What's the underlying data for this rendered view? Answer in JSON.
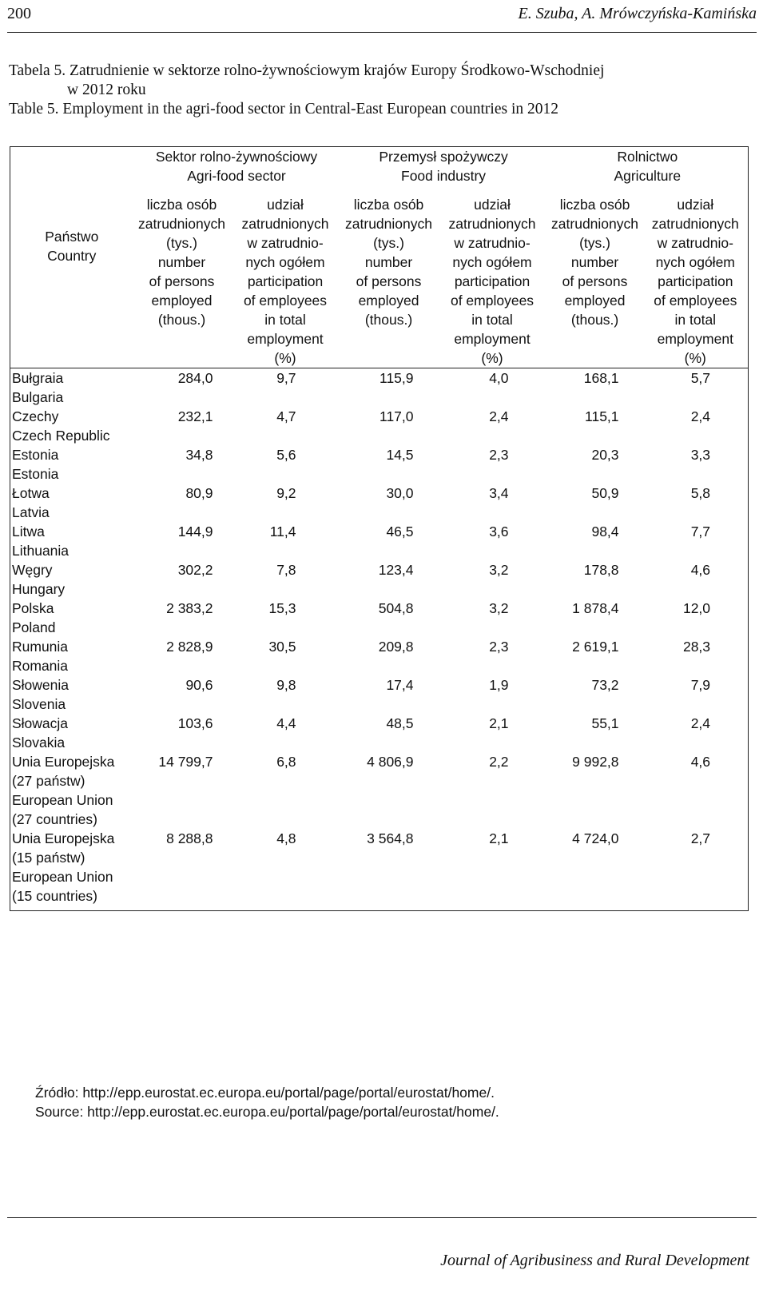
{
  "header": {
    "page_number": "200",
    "authors": "E. Szuba, A. Mrówczyńska-Kamińska"
  },
  "caption": {
    "pl_line1": "Tabela 5. Zatrudnienie w sektorze rolno-żywnościowym krajów Europy Środkowo-Wschodniej",
    "pl_line2": "w 2012 roku",
    "en_line": "Table 5.  Employment in the agri-food sector in Central-East European countries in 2012"
  },
  "table": {
    "country_header": [
      "Państwo",
      "Country"
    ],
    "groups": [
      {
        "pl": "Sektor rolno-żywnościowy",
        "en": "Agri-food sector"
      },
      {
        "pl": "Przemysł spożywczy",
        "en": "Food industry"
      },
      {
        "pl": "Rolnictwo",
        "en": "Agriculture"
      }
    ],
    "subheaders": {
      "count": [
        "liczba osób",
        "zatrudnionych",
        "(tys.)",
        "number",
        "of persons",
        "employed",
        "(thous.)"
      ],
      "share": [
        "udział",
        "zatrudnionych",
        "w zatrudnio-",
        "nych ogółem",
        "participation",
        "of employees",
        "in total",
        "employment",
        "(%)"
      ]
    },
    "rows": [
      {
        "name": [
          "Bułgraia",
          "Bulgaria"
        ],
        "values": [
          "284,0",
          "9,7",
          "115,9",
          "4,0",
          "168,1",
          "5,7"
        ]
      },
      {
        "name": [
          "Czechy",
          "Czech Republic"
        ],
        "values": [
          "232,1",
          "4,7",
          "117,0",
          "2,4",
          "115,1",
          "2,4"
        ]
      },
      {
        "name": [
          "Estonia",
          "Estonia"
        ],
        "values": [
          "34,8",
          "5,6",
          "14,5",
          "2,3",
          "20,3",
          "3,3"
        ]
      },
      {
        "name": [
          "Łotwa",
          "Latvia"
        ],
        "values": [
          "80,9",
          "9,2",
          "30,0",
          "3,4",
          "50,9",
          "5,8"
        ]
      },
      {
        "name": [
          "Litwa",
          "Lithuania"
        ],
        "values": [
          "144,9",
          "11,4",
          "46,5",
          "3,6",
          "98,4",
          "7,7"
        ]
      },
      {
        "name": [
          "Węgry",
          "Hungary"
        ],
        "values": [
          "302,2",
          "7,8",
          "123,4",
          "3,2",
          "178,8",
          "4,6"
        ]
      },
      {
        "name": [
          "Polska",
          "Poland"
        ],
        "values": [
          "2 383,2",
          "15,3",
          "504,8",
          "3,2",
          "1 878,4",
          "12,0"
        ]
      },
      {
        "name": [
          "Rumunia",
          "Romania"
        ],
        "values": [
          "2 828,9",
          "30,5",
          "209,8",
          "2,3",
          "2 619,1",
          "28,3"
        ]
      },
      {
        "name": [
          "Słowenia",
          "Slovenia"
        ],
        "values": [
          "90,6",
          "9,8",
          "17,4",
          "1,9",
          "73,2",
          "7,9"
        ]
      },
      {
        "name": [
          "Słowacja",
          "Slovakia"
        ],
        "values": [
          "103,6",
          "4,4",
          "48,5",
          "2,1",
          "55,1",
          "2,4"
        ]
      },
      {
        "name": [
          "Unia Europejska",
          "(27 państw)",
          "European Union",
          "(27 countries)"
        ],
        "values": [
          "14 799,7",
          "6,8",
          "4 806,9",
          "2,2",
          "9 992,8",
          "4,6"
        ]
      },
      {
        "name": [
          "Unia Europejska",
          "(15 państw)",
          "European Union",
          "(15 countries)"
        ],
        "values": [
          "8 288,8",
          "4,8",
          "3 564,8",
          "2,1",
          "4 724,0",
          "2,7"
        ]
      }
    ]
  },
  "source": {
    "pl": "Źródło: http://epp.eurostat.ec.europa.eu/portal/page/portal/eurostat/home/.",
    "en": "Source: http://epp.eurostat.ec.europa.eu/portal/page/portal/eurostat/home/."
  },
  "footer": {
    "journal": "Journal of Agribusiness and Rural Development"
  }
}
